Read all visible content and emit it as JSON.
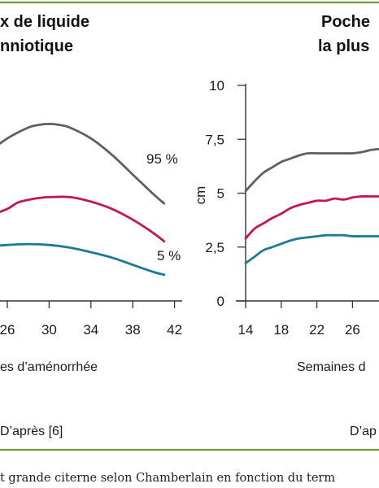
{
  "frame": {
    "border_color": "#6e9a3a"
  },
  "caption": "t grande citerne selon Chamberlain en fonction du term",
  "chart_data": [
    {
      "type": "line",
      "title_lines": [
        "x de liquide",
        "nniotique"
      ],
      "xlabel": "es d’aménorrhée",
      "ylabel": "",
      "source": "D’après [6]",
      "x_ticks": [
        26,
        30,
        34,
        38,
        42
      ],
      "x_tick_labels": [
        "26",
        "30",
        "34",
        "38",
        "42"
      ],
      "grid": false,
      "series": [
        {
          "name": "95 %",
          "color": "#5f5f5f",
          "x": [
            22,
            24,
            26,
            28,
            29,
            30,
            31,
            32,
            34,
            36,
            38,
            40,
            41
          ],
          "y": [
            14.5,
            16.3,
            18.0,
            19.2,
            19.5,
            19.6,
            19.5,
            19.2,
            18.0,
            16.2,
            14.0,
            11.8,
            10.8
          ]
        },
        {
          "name": "",
          "color": "#c0175c",
          "x": [
            22,
            24,
            26,
            27,
            28,
            29,
            30,
            32,
            34,
            36,
            38,
            40,
            41
          ],
          "y": [
            8.5,
            9.3,
            10.2,
            10.9,
            11.2,
            11.4,
            11.5,
            11.5,
            11.0,
            10.2,
            9.0,
            7.5,
            6.6
          ]
        },
        {
          "name": "5 %",
          "color": "#1a7a98",
          "x": [
            22,
            24,
            26,
            28,
            30,
            32,
            34,
            36,
            38,
            40,
            41
          ],
          "y": [
            5.8,
            6.0,
            6.2,
            6.3,
            6.2,
            5.9,
            5.4,
            4.8,
            4.0,
            3.2,
            2.9
          ]
        }
      ]
    },
    {
      "type": "line",
      "title_lines": [
        "Poche ",
        "la plus "
      ],
      "xlabel": "Semaines d",
      "ylabel": "cm",
      "source": "D’ap",
      "x_ticks": [
        14,
        18,
        22,
        26
      ],
      "x_tick_labels": [
        "14",
        "18",
        "22",
        "26"
      ],
      "y_ticks": [
        0,
        2.5,
        5,
        7.5,
        10
      ],
      "y_tick_labels": [
        "0",
        "2,5",
        "5",
        "7,5",
        "10"
      ],
      "ylim": [
        0,
        10
      ],
      "grid": false,
      "series": [
        {
          "name": "",
          "color": "#5f5f5f",
          "x": [
            14,
            15,
            16,
            17,
            18,
            19,
            20,
            21,
            22,
            23,
            24,
            25,
            26,
            27,
            28,
            29
          ],
          "y": [
            5.1,
            5.55,
            5.95,
            6.2,
            6.45,
            6.6,
            6.75,
            6.85,
            6.85,
            6.85,
            6.85,
            6.85,
            6.85,
            6.9,
            7.0,
            7.05
          ]
        },
        {
          "name": "",
          "color": "#c0175c",
          "x": [
            14,
            15,
            16,
            17,
            18,
            19,
            20,
            21,
            22,
            23,
            24,
            25,
            26,
            27,
            28,
            29
          ],
          "y": [
            2.9,
            3.35,
            3.6,
            3.85,
            4.05,
            4.3,
            4.45,
            4.55,
            4.65,
            4.65,
            4.75,
            4.7,
            4.8,
            4.85,
            4.85,
            4.85
          ]
        },
        {
          "name": "",
          "color": "#1a7a98",
          "x": [
            14,
            15,
            16,
            17,
            18,
            19,
            20,
            21,
            22,
            23,
            24,
            25,
            26,
            27,
            28,
            29
          ],
          "y": [
            1.75,
            2.05,
            2.35,
            2.5,
            2.65,
            2.8,
            2.9,
            2.95,
            3.0,
            3.05,
            3.05,
            3.05,
            3.0,
            3.0,
            3.0,
            3.0
          ]
        }
      ]
    }
  ]
}
